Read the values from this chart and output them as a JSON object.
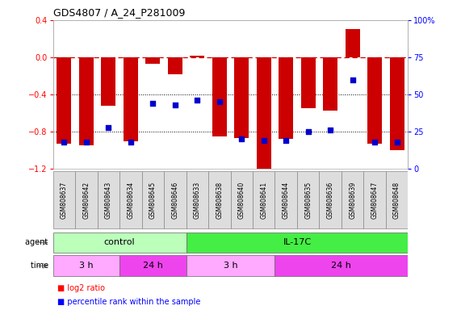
{
  "title": "GDS4807 / A_24_P281009",
  "samples": [
    "GSM808637",
    "GSM808642",
    "GSM808643",
    "GSM808634",
    "GSM808645",
    "GSM808646",
    "GSM808633",
    "GSM808638",
    "GSM808640",
    "GSM808641",
    "GSM808644",
    "GSM808635",
    "GSM808636",
    "GSM808639",
    "GSM808647",
    "GSM808648"
  ],
  "log2_ratio": [
    -0.93,
    -0.95,
    -0.52,
    -0.9,
    -0.07,
    -0.18,
    0.02,
    -0.85,
    -0.87,
    -1.22,
    -0.88,
    -0.55,
    -0.57,
    0.3,
    -0.93,
    -1.0
  ],
  "percentile": [
    18,
    18,
    28,
    18,
    44,
    43,
    46,
    45,
    20,
    19,
    19,
    25,
    26,
    60,
    18,
    18
  ],
  "ylim": [
    -1.2,
    0.4
  ],
  "yticks_left": [
    -1.2,
    -0.8,
    -0.4,
    0.0,
    0.4
  ],
  "yticks_right": [
    0,
    25,
    50,
    75,
    100
  ],
  "bar_color": "#cc0000",
  "dot_color": "#0000cc",
  "dashed_color": "#cc0000",
  "grid_color": "#000000",
  "agent_control_color": "#bbffbb",
  "agent_il17c_color": "#44ee44",
  "time_3h_color": "#ffaaff",
  "time_24h_color": "#ee44ee",
  "bg_color": "#ffffff",
  "sample_bg_color": "#dddddd",
  "legend_red_text": "log2 ratio",
  "legend_blue_text": "percentile rank within the sample"
}
